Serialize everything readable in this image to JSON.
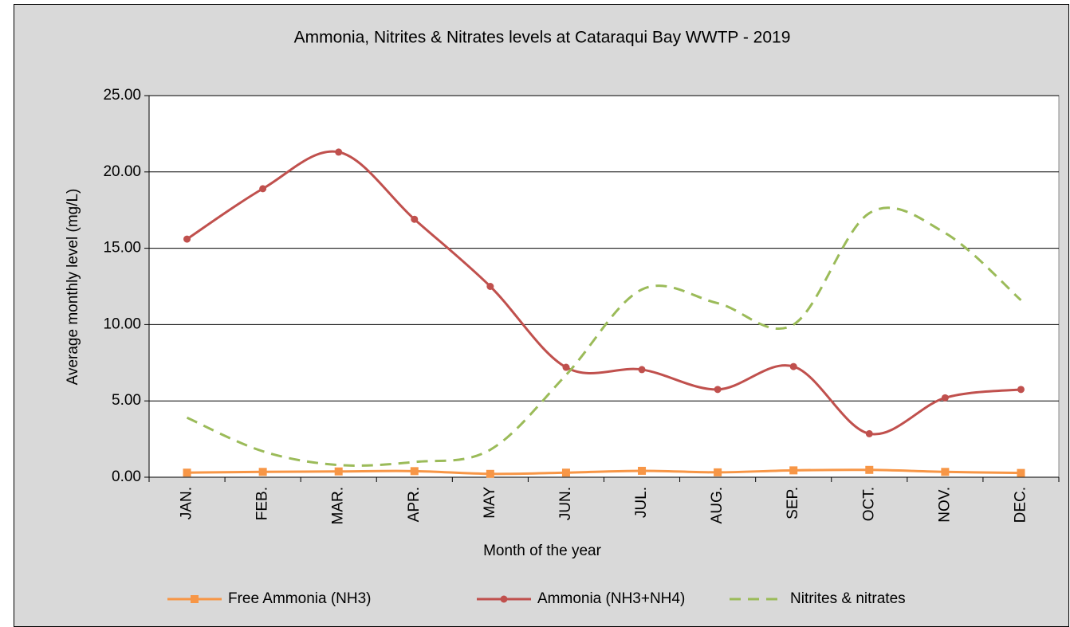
{
  "chart_data": {
    "type": "line",
    "title": "Ammonia, Nitrites & Nitrates levels at Cataraqui Bay WWTP - 2019",
    "x_label": "Month of the year",
    "y_label": "Average monthly level (mg/L)",
    "categories": [
      "JAN.",
      "FEB.",
      "MAR.",
      "APR.",
      "MAY",
      "JUN.",
      "JUL.",
      "AUG.",
      "SEP.",
      "OCT.",
      "NOV.",
      "DEC."
    ],
    "series": [
      {
        "name": "Free Ammonia (NH3)",
        "color": "#f79646",
        "marker": "square",
        "dashed": false,
        "values": [
          0.3,
          0.35,
          0.38,
          0.4,
          0.22,
          0.3,
          0.42,
          0.32,
          0.45,
          0.48,
          0.35,
          0.28
        ]
      },
      {
        "name": "Ammonia (NH3+NH4)",
        "color": "#c0504d",
        "marker": "circle",
        "dashed": false,
        "values": [
          15.6,
          18.9,
          21.3,
          16.9,
          12.5,
          7.2,
          7.05,
          5.75,
          7.25,
          2.85,
          5.2,
          5.75
        ]
      },
      {
        "name": "Nitrites & nitrates",
        "color": "#9bbb59",
        "marker": "none",
        "dashed": true,
        "values": [
          3.9,
          1.7,
          0.8,
          1.0,
          1.8,
          6.7,
          12.3,
          11.4,
          10.0,
          17.3,
          16.0,
          11.6
        ]
      }
    ],
    "ylim": [
      0,
      25
    ],
    "yticks": [
      {
        "value": 0,
        "label": "0.00"
      },
      {
        "value": 5,
        "label": "5.00"
      },
      {
        "value": 10,
        "label": "10.00"
      },
      {
        "value": 15,
        "label": "15.00"
      },
      {
        "value": 20,
        "label": "20.00"
      },
      {
        "value": 25,
        "label": "25.00"
      }
    ],
    "grid": true,
    "smooth": true,
    "legend": "bottom"
  }
}
